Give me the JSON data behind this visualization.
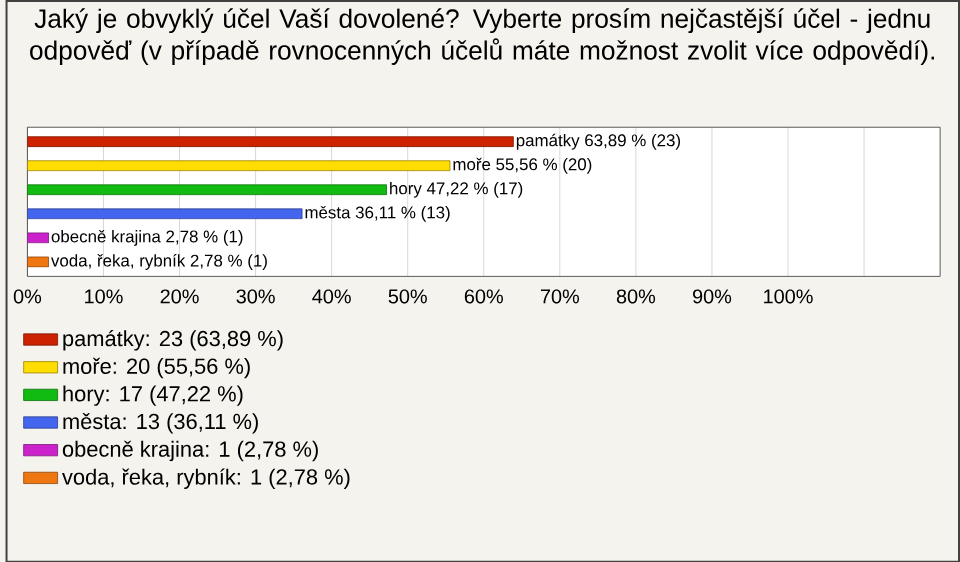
{
  "chart_data": {
    "type": "bar",
    "orientation": "horizontal",
    "title": "Jaký je obvyklý účel Vaší dovolené? Vyberte prosím nejčastější účel - jednu odpověď (v případě rovnocenných účelů máte možnost zvolit více odpovědí).",
    "categories": [
      null,
      null,
      null,
      null,
      null,
      null
    ],
    "series": [
      {
        "name": "památky: 23 (63,89 %)",
        "color": "#cc2200",
        "values": [
          63.89,
          null,
          null,
          null,
          null,
          null
        ],
        "value_labels": [
          "památky 63,89 % (23)",
          null,
          null,
          null,
          null,
          null
        ]
      },
      {
        "name": "moře: 20 (55,56 %)",
        "color": "#ffdd00",
        "values": [
          null,
          55.56,
          null,
          null,
          null,
          null
        ],
        "value_labels": [
          null,
          "moře 55,56 % (20)",
          null,
          null,
          null,
          null
        ]
      },
      {
        "name": "hory: 17 (47,22 %)",
        "color": "#11bb11",
        "values": [
          null,
          null,
          47.22,
          null,
          null,
          null
        ],
        "value_labels": [
          null,
          null,
          "hory 47,22 % (17)",
          null,
          null,
          null
        ]
      },
      {
        "name": "města: 13 (36,11 %)",
        "color": "#4466ee",
        "values": [
          null,
          null,
          null,
          36.11,
          null,
          null
        ],
        "value_labels": [
          null,
          null,
          null,
          "města 36,11 % (13)",
          null,
          null
        ]
      },
      {
        "name": "obecně krajina: 1 (2,78 %)",
        "color": "#cc22cc",
        "values": [
          null,
          null,
          null,
          null,
          2.78,
          null
        ],
        "value_labels": [
          null,
          null,
          null,
          null,
          "obecně krajina 2,78 % (1)",
          null
        ]
      },
      {
        "name": "voda, řeka, rybník: 1 (2,78 %)",
        "color": "#ee7711",
        "values": [
          null,
          null,
          null,
          null,
          null,
          2.78
        ],
        "value_labels": [
          null,
          null,
          null,
          null,
          null,
          "voda, řeka, rybník 2,78 % (1)"
        ]
      }
    ],
    "xlim": [
      0,
      120
    ],
    "xticks": [
      {
        "value": 0,
        "label": "0%"
      },
      {
        "value": 10,
        "label": "10%"
      },
      {
        "value": 20,
        "label": "20%"
      },
      {
        "value": 30,
        "label": "30%"
      },
      {
        "value": 40,
        "label": "40%"
      },
      {
        "value": 50,
        "label": "50%"
      },
      {
        "value": 60,
        "label": "60%"
      },
      {
        "value": 70,
        "label": "70%"
      },
      {
        "value": 80,
        "label": "80%"
      },
      {
        "value": 90,
        "label": "90%"
      },
      {
        "value": 100,
        "label": "100%"
      },
      {
        "value": 110,
        "label": null
      }
    ],
    "grid": "x",
    "legend": "bottom"
  }
}
